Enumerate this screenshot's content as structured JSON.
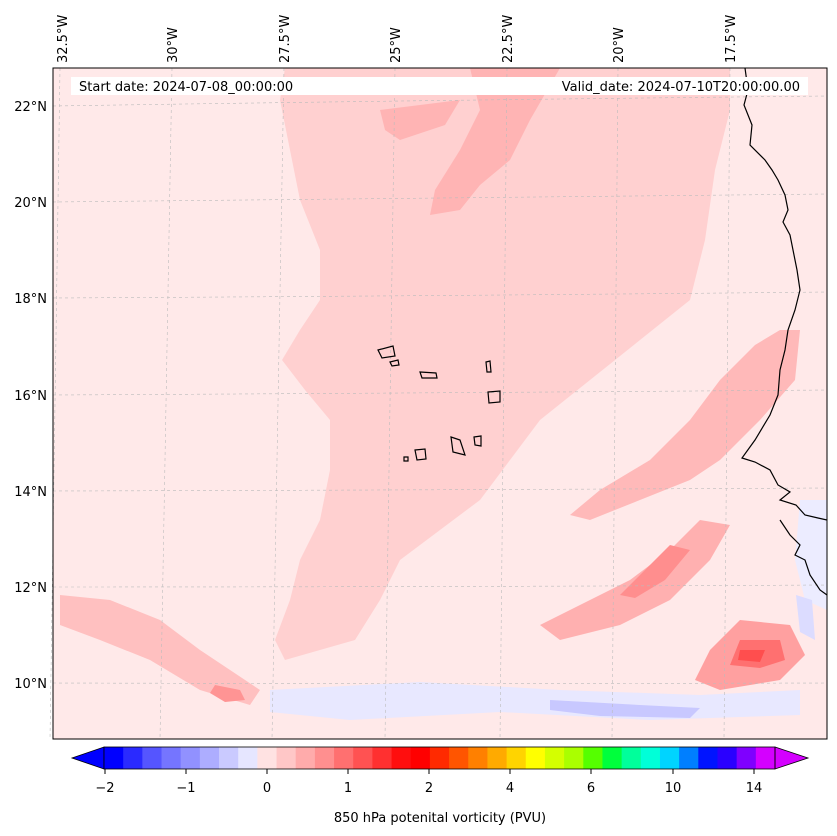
{
  "map": {
    "start_label": "Start date: 2024-07-08_00:00:00",
    "valid_label": "Valid_date: 2024-07-10T20:00:00.00",
    "lon_labels": [
      "32.5°W",
      "30°W",
      "27.5°W",
      "25°W",
      "22.5°W",
      "20°W",
      "17.5°W"
    ],
    "lat_labels": [
      "22°N",
      "20°N",
      "18°N",
      "16°N",
      "14°N",
      "12°N",
      "10°N"
    ],
    "background_color": "#ffe9e9",
    "coastline_color": "#000000"
  },
  "colorbar": {
    "tick_labels": [
      "−2",
      "−1",
      "0",
      "1",
      "2",
      "4",
      "6",
      "10",
      "14"
    ],
    "label": "850 hPa potenital vorticity (PVU)",
    "colors": [
      "#0000ff",
      "#2a2aff",
      "#5555ff",
      "#7575ff",
      "#9191ff",
      "#adadff",
      "#cacaff",
      "#e6e6ff",
      "#ffe2e2",
      "#ffc7c7",
      "#ffabab",
      "#ff8f8f",
      "#ff7070",
      "#ff5252",
      "#ff3030",
      "#ff0e0e",
      "#ff0000",
      "#ff2a00",
      "#ff5500",
      "#ff8000",
      "#ffaa00",
      "#ffd400",
      "#ffff00",
      "#d4ff00",
      "#aaff00",
      "#55ff00",
      "#00ff3c",
      "#00ff9b",
      "#00ffd8",
      "#00d4ff",
      "#007fff",
      "#0014ff",
      "#2a00ff",
      "#7f00ff",
      "#d400ff"
    ]
  }
}
